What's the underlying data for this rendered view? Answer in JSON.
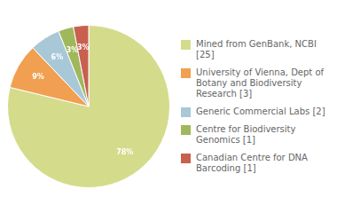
{
  "chart_data": {
    "type": "pie",
    "categories": [
      "Mined from GenBank, NCBI [25]",
      "University of Vienna, Dept of\nBotany and Biodiversity\nResearch [3]",
      "Generic Commercial Labs [2]",
      "Centre for Biodiversity\nGenomics [1]",
      "Canadian Centre for DNA\nBarcoding [1]"
    ],
    "values": [
      78,
      9,
      6,
      3,
      3
    ],
    "value_labels": [
      "78%",
      "9%",
      "6%",
      "3%",
      "3%"
    ],
    "colors": [
      "#d4dc8c",
      "#f0a050",
      "#a8c8d8",
      "#a0b85c",
      "#c86050"
    ],
    "data_labels": true,
    "legend": "right"
  }
}
